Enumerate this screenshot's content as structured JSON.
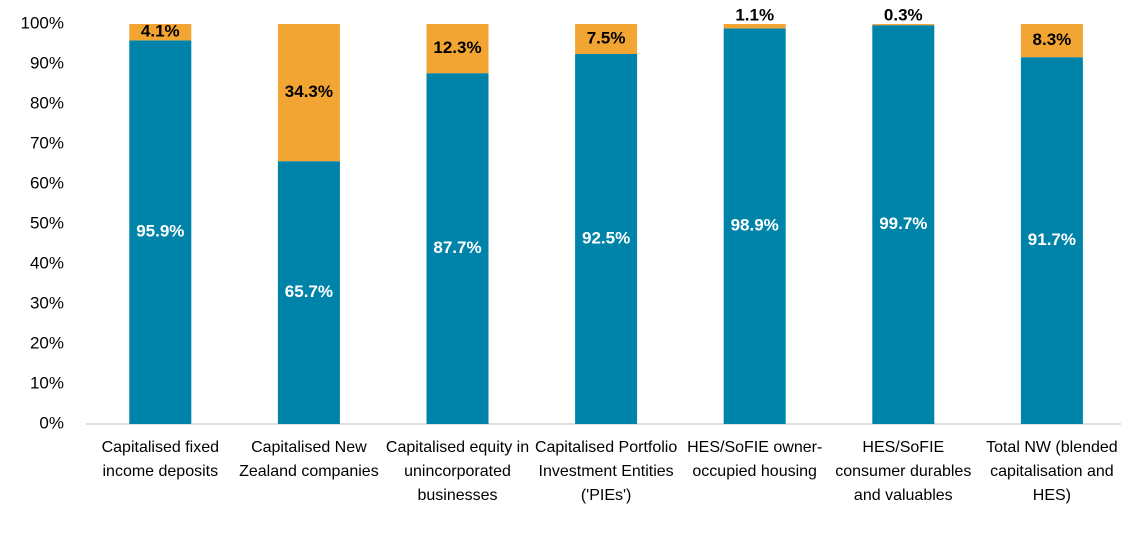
{
  "chart_data": {
    "type": "stacked_bar",
    "categories": [
      "Capitalised fixed income deposits",
      "Capitalised New Zealand companies",
      "Capitalised equity in unincorporated businesses",
      "Capitalised Portfolio Investment Entities ('PIEs')",
      "HES/SoFIE owner-occupied housing",
      "HES/SoFIE consumer durables and valuables",
      "Total NW (blended capitalisation and HES)"
    ],
    "series": [
      {
        "color": "#0083a9",
        "values": [
          95.9,
          65.7,
          87.7,
          92.5,
          98.9,
          99.7,
          91.7
        ],
        "value_labels": [
          "95.9%",
          "65.7%",
          "87.7%",
          "92.5%",
          "98.9%",
          "99.7%",
          "91.7%"
        ]
      },
      {
        "color": "#f2a533",
        "values": [
          4.1,
          34.3,
          12.3,
          7.5,
          1.1,
          0.3,
          8.3
        ],
        "value_labels": [
          "4.1%",
          "34.3%",
          "12.3%",
          "7.5%",
          "1.1%",
          "0.3%",
          "8.3%"
        ]
      }
    ],
    "ylim": [
      0,
      100
    ],
    "yticks": [
      {
        "value": 0,
        "label": "0%"
      },
      {
        "value": 10,
        "label": "10%"
      },
      {
        "value": 20,
        "label": "20%"
      },
      {
        "value": 30,
        "label": "30%"
      },
      {
        "value": 40,
        "label": "40%"
      },
      {
        "value": 50,
        "label": "50%"
      },
      {
        "value": 60,
        "label": "60%"
      },
      {
        "value": 70,
        "label": "70%"
      },
      {
        "value": 80,
        "label": "80%"
      },
      {
        "value": 90,
        "label": "90%"
      },
      {
        "value": 100,
        "label": "100%"
      }
    ],
    "grid": false
  }
}
